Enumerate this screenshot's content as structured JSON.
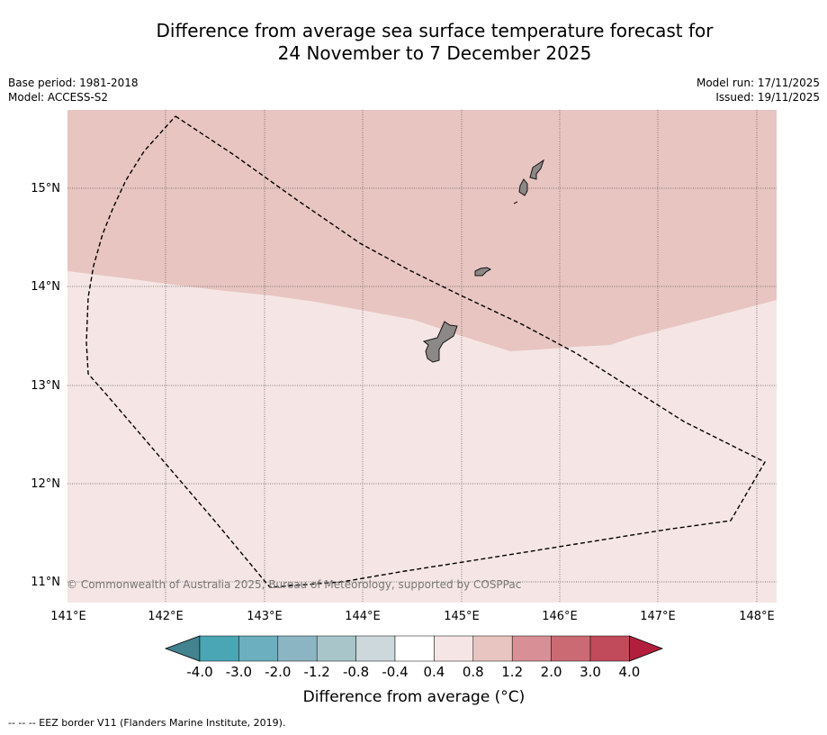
{
  "title_line1": "Difference from average sea surface temperature forecast for",
  "title_line2": "24 November to 7 December 2025",
  "meta_left": {
    "base_period": "Base period: 1981-2018",
    "model": "Model: ACCESS-S2"
  },
  "meta_right": {
    "model_run": "Model run: 17/11/2025",
    "issued": "Issued: 19/11/2025"
  },
  "lon_labels": [
    "141°E",
    "142°E",
    "143°E",
    "144°E",
    "145°E",
    "146°E",
    "147°E",
    "148°E"
  ],
  "lat_labels": [
    "15°N",
    "14°N",
    "13°N",
    "12°N",
    "11°N"
  ],
  "copyright": "© Commonwealth of Australia 2025, Bureau of Meteorology, supported by COSPPac",
  "colorbar": {
    "colors": [
      "#42838f",
      "#4aa5b4",
      "#6cafbe",
      "#8bb5c2",
      "#a8c6ca",
      "#ccd8dc",
      "#ffffff",
      "#f5e6e5",
      "#e8c5c1",
      "#d88f95",
      "#cc6a74",
      "#c14a5b",
      "#b21f3d"
    ],
    "tick_labels": [
      "-4.0",
      "-3.0",
      "-2.0",
      "-1.2",
      "-0.8",
      "-0.4",
      "0.4",
      "0.8",
      "1.2",
      "2.0",
      "3.0",
      "4.0"
    ],
    "title": "Difference from average (°C)"
  },
  "footnote": "-- -- -- EEZ border V11 (Flanders Marine Institute, 2019)."
}
